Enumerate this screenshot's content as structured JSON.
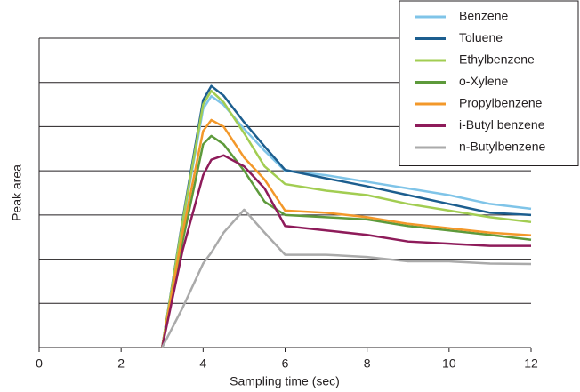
{
  "chart_data": {
    "type": "line",
    "x_label": "Sampling time (sec)",
    "y_label": "Peak area",
    "x": [
      3,
      3.5,
      4,
      4.2,
      4.5,
      5,
      5.5,
      6,
      7,
      8,
      9,
      10,
      11,
      12
    ],
    "xlim": [
      0,
      12
    ],
    "xticks": [
      0,
      2,
      4,
      6,
      8,
      10,
      12
    ],
    "ylim": [
      0,
      7
    ],
    "grid": true,
    "legend": "upper right",
    "series": [
      {
        "name": "Benzene",
        "color": "#7fc4e8",
        "values": [
          0,
          2.8,
          5.4,
          5.69,
          5.49,
          4.95,
          4.45,
          4.0,
          3.9,
          3.75,
          3.6,
          3.45,
          3.25,
          3.14
        ]
      },
      {
        "name": "Toluene",
        "color": "#1c5e8f",
        "values": [
          0,
          2.9,
          5.6,
          5.92,
          5.7,
          5.1,
          4.55,
          4.02,
          3.83,
          3.65,
          3.45,
          3.25,
          3.05,
          3.0
        ]
      },
      {
        "name": "Ethylbenzene",
        "color": "#a2cd52",
        "values": [
          0,
          2.85,
          5.5,
          5.81,
          5.55,
          4.85,
          4.1,
          3.7,
          3.55,
          3.45,
          3.25,
          3.1,
          2.95,
          2.84
        ]
      },
      {
        "name": "o-Xylene",
        "color": "#5d9a3b",
        "values": [
          0,
          2.4,
          4.6,
          4.79,
          4.6,
          4.0,
          3.3,
          3.0,
          2.95,
          2.9,
          2.75,
          2.65,
          2.55,
          2.44
        ]
      },
      {
        "name": "Propylbenzene",
        "color": "#f3982a",
        "values": [
          0,
          2.6,
          4.9,
          5.15,
          5.0,
          4.3,
          3.8,
          3.1,
          3.05,
          2.95,
          2.8,
          2.7,
          2.6,
          2.54
        ]
      },
      {
        "name": "i-Butyl benzene",
        "color": "#8e1b5a",
        "values": [
          0,
          2.2,
          3.9,
          4.25,
          4.35,
          4.1,
          3.6,
          2.75,
          2.65,
          2.55,
          2.4,
          2.35,
          2.3,
          2.3
        ]
      },
      {
        "name": "n-Butylbenzene",
        "color": "#aaaaaa",
        "values": [
          0,
          0.9,
          1.9,
          2.15,
          2.6,
          3.12,
          2.6,
          2.1,
          2.1,
          2.05,
          1.95,
          1.95,
          1.9,
          1.89
        ]
      }
    ]
  }
}
